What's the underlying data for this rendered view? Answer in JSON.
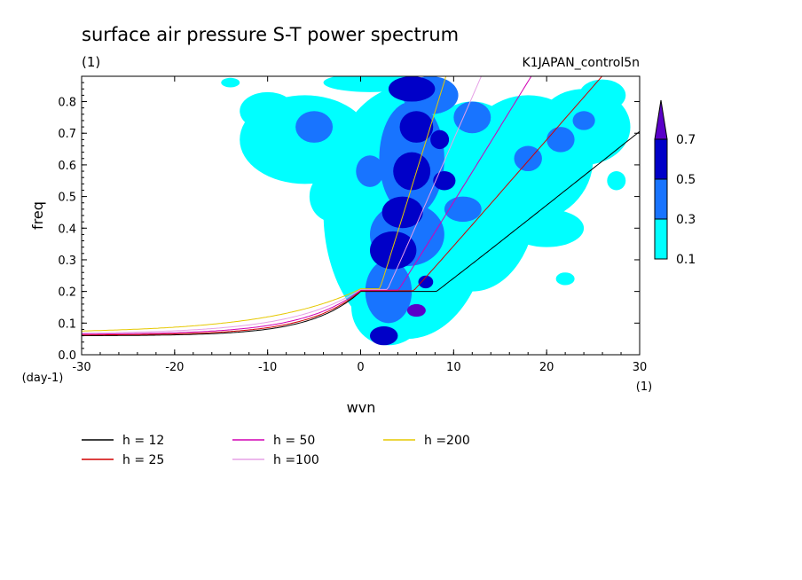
{
  "chart_data": {
    "type": "heatmap",
    "title": "surface air pressure S-T power spectrum",
    "subtitle_left": "(1)",
    "subtitle_right": "K1JAPAN_control5n",
    "xlabel": "wvn",
    "ylabel": "freq",
    "x_unit": "(1)",
    "y_unit": "(day-1)",
    "xlim": [
      -30,
      30
    ],
    "ylim": [
      0,
      0.88
    ],
    "x_ticks": [
      -30,
      -20,
      -10,
      0,
      10,
      20,
      30
    ],
    "x_tick_labels": [
      "-30",
      "-20",
      "-10",
      "0",
      "10",
      "20",
      "30"
    ],
    "y_ticks": [
      0,
      0.1,
      0.2,
      0.3,
      0.4,
      0.5,
      0.6,
      0.7,
      0.8
    ],
    "y_tick_labels": [
      "0.0",
      "0.1",
      "0.2",
      "0.3",
      "0.4",
      "0.5",
      "0.6",
      "0.7",
      "0.8"
    ],
    "colorbar": {
      "levels": [
        0.1,
        0.3,
        0.5,
        0.7
      ],
      "level_labels": [
        "0.1",
        "0.3",
        "0.5",
        "0.7"
      ],
      "colors": [
        "#00ffff",
        "#1874ff",
        "#0000c8",
        "#5a00c8"
      ]
    },
    "contour_blobs": [
      {
        "x": 3.5,
        "y": 0.33,
        "rx": 2.5,
        "ry": 0.06,
        "level": 3
      },
      {
        "x": 4.5,
        "y": 0.45,
        "rx": 2.2,
        "ry": 0.05,
        "level": 3
      },
      {
        "x": 5.5,
        "y": 0.58,
        "rx": 2.0,
        "ry": 0.06,
        "level": 3
      },
      {
        "x": 6.0,
        "y": 0.72,
        "rx": 1.8,
        "ry": 0.05,
        "level": 3
      },
      {
        "x": 5.5,
        "y": 0.84,
        "rx": 2.5,
        "ry": 0.04,
        "level": 3
      },
      {
        "x": 2.5,
        "y": 0.06,
        "rx": 1.5,
        "ry": 0.03,
        "level": 3
      },
      {
        "x": 6.0,
        "y": 0.14,
        "rx": 1.0,
        "ry": 0.02,
        "level": 4
      },
      {
        "x": 8.5,
        "y": 0.68,
        "rx": 1.0,
        "ry": 0.03,
        "level": 3
      },
      {
        "x": 9.0,
        "y": 0.55,
        "rx": 1.2,
        "ry": 0.03,
        "level": 3
      },
      {
        "x": 7.0,
        "y": 0.23,
        "rx": 0.8,
        "ry": 0.02,
        "level": 3
      },
      {
        "x": 5.0,
        "y": 0.38,
        "rx": 4.0,
        "ry": 0.1,
        "level": 2
      },
      {
        "x": 5.5,
        "y": 0.62,
        "rx": 3.5,
        "ry": 0.18,
        "level": 2
      },
      {
        "x": 3.0,
        "y": 0.2,
        "rx": 2.5,
        "ry": 0.1,
        "level": 2
      },
      {
        "x": 7.5,
        "y": 0.82,
        "rx": 3.0,
        "ry": 0.06,
        "level": 2
      },
      {
        "x": 12.0,
        "y": 0.75,
        "rx": 2.0,
        "ry": 0.05,
        "level": 2
      },
      {
        "x": 11.0,
        "y": 0.46,
        "rx": 2.0,
        "ry": 0.04,
        "level": 2
      },
      {
        "x": 18.0,
        "y": 0.62,
        "rx": 1.5,
        "ry": 0.04,
        "level": 2
      },
      {
        "x": 21.5,
        "y": 0.68,
        "rx": 1.5,
        "ry": 0.04,
        "level": 2
      },
      {
        "x": 24.0,
        "y": 0.74,
        "rx": 1.2,
        "ry": 0.03,
        "level": 2
      },
      {
        "x": -5.0,
        "y": 0.72,
        "rx": 2.0,
        "ry": 0.05,
        "level": 2
      },
      {
        "x": 1.0,
        "y": 0.58,
        "rx": 1.5,
        "ry": 0.05,
        "level": 2
      },
      {
        "x": 5.0,
        "y": 0.45,
        "rx": 9.0,
        "ry": 0.4,
        "level": 1
      },
      {
        "x": 3.0,
        "y": 0.15,
        "rx": 4.0,
        "ry": 0.12,
        "level": 1
      },
      {
        "x": 12.0,
        "y": 0.5,
        "rx": 7.0,
        "ry": 0.3,
        "level": 1
      },
      {
        "x": 18.0,
        "y": 0.62,
        "rx": 7.0,
        "ry": 0.2,
        "level": 1
      },
      {
        "x": 24.0,
        "y": 0.72,
        "rx": 5.0,
        "ry": 0.12,
        "level": 1
      },
      {
        "x": -6.0,
        "y": 0.68,
        "rx": 7.0,
        "ry": 0.14,
        "level": 1
      },
      {
        "x": -10.0,
        "y": 0.77,
        "rx": 3.0,
        "ry": 0.06,
        "level": 1
      },
      {
        "x": -3.0,
        "y": 0.5,
        "rx": 2.5,
        "ry": 0.08,
        "level": 1
      },
      {
        "x": 20.0,
        "y": 0.4,
        "rx": 4.0,
        "ry": 0.06,
        "level": 1
      },
      {
        "x": 26.0,
        "y": 0.82,
        "rx": 2.5,
        "ry": 0.05,
        "level": 1
      },
      {
        "x": 11.0,
        "y": 0.28,
        "rx": 3.0,
        "ry": 0.05,
        "level": 1
      },
      {
        "x": 22.0,
        "y": 0.24,
        "rx": 1.0,
        "ry": 0.02,
        "level": 1
      },
      {
        "x": 1.0,
        "y": 0.86,
        "rx": 5.0,
        "ry": 0.03,
        "level": 1
      },
      {
        "x": -14.0,
        "y": 0.86,
        "rx": 1.0,
        "ry": 0.015,
        "level": 1
      },
      {
        "x": 27.5,
        "y": 0.55,
        "rx": 1.0,
        "ry": 0.03,
        "level": 1
      },
      {
        "x": 17.0,
        "y": 0.5,
        "rx": 2.0,
        "ry": 0.05,
        "level": 1
      },
      {
        "x": 14.0,
        "y": 0.7,
        "rx": 2.5,
        "ry": 0.05,
        "level": 1
      }
    ],
    "series": [
      {
        "name": "h = 12",
        "equiv_depth": 12,
        "color": "#000000"
      },
      {
        "name": "h = 25",
        "equiv_depth": 25,
        "color": "#d20000"
      },
      {
        "name": "h = 50",
        "equiv_depth": 50,
        "color": "#d200b4"
      },
      {
        "name": "h =100",
        "equiv_depth": 100,
        "color": "#e6a0e6"
      },
      {
        "name": "h =200",
        "equiv_depth": 200,
        "color": "#e6c800"
      }
    ],
    "legend_placement": "bottom-left"
  }
}
